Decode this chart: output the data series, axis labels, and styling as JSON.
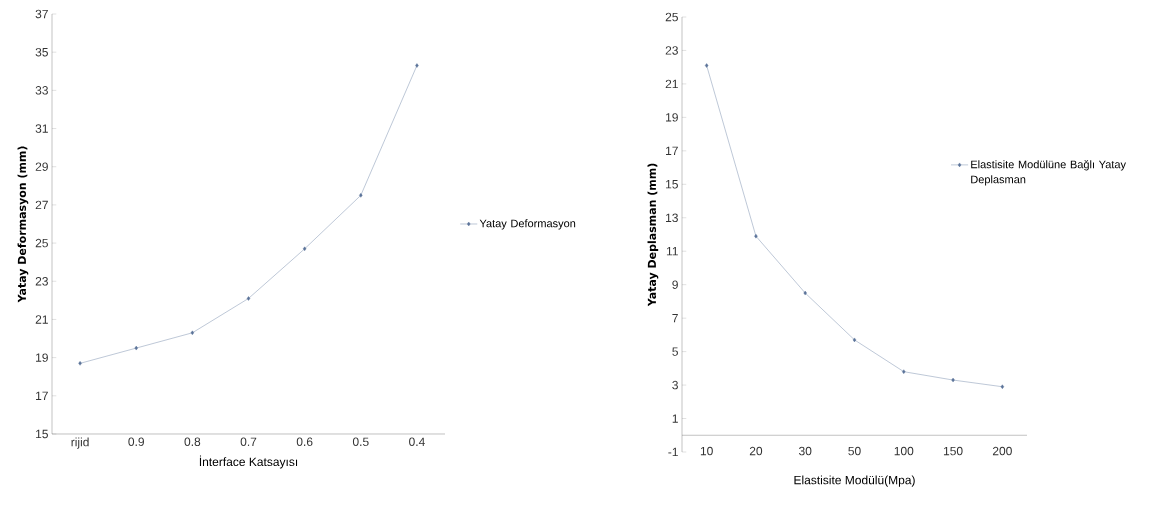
{
  "chart_data": [
    {
      "type": "line",
      "xlabel": "İnterface Katsayısı",
      "ylabel": "Yatay Deformasyon  (mm)",
      "categories": [
        "rijid",
        "0.9",
        "0.8",
        "0.7",
        "0.6",
        "0.5",
        "0.4"
      ],
      "series": [
        {
          "name": "Yatay Deformasyon",
          "color": "#5b7399",
          "values": [
            18.7,
            19.5,
            20.3,
            22.1,
            24.7,
            27.5,
            34.3
          ]
        }
      ],
      "ylim": [
        15,
        37
      ],
      "yticks": [
        15,
        17,
        19,
        21,
        23,
        25,
        27,
        29,
        31,
        33,
        35,
        37
      ],
      "legend": "right",
      "marker": "diamond",
      "grid": false
    },
    {
      "type": "line",
      "xlabel": "Elastisite  Modülü(Mpa)",
      "ylabel": "Yatay Deplasman  (mm)",
      "categories": [
        "10",
        "20",
        "30",
        "50",
        "100",
        "150",
        "200"
      ],
      "series": [
        {
          "name": "Elastisite Modülüne Bağlı Yatay Deplasman",
          "color": "#5b7399",
          "values": [
            22.1,
            11.9,
            8.5,
            5.7,
            3.8,
            3.3,
            2.9
          ]
        }
      ],
      "ylim": [
        -1,
        25
      ],
      "yticks": [
        -1,
        1,
        3,
        5,
        7,
        9,
        11,
        13,
        15,
        17,
        19,
        21,
        23,
        25
      ],
      "legend": "right",
      "marker": "diamond",
      "grid": false
    }
  ]
}
